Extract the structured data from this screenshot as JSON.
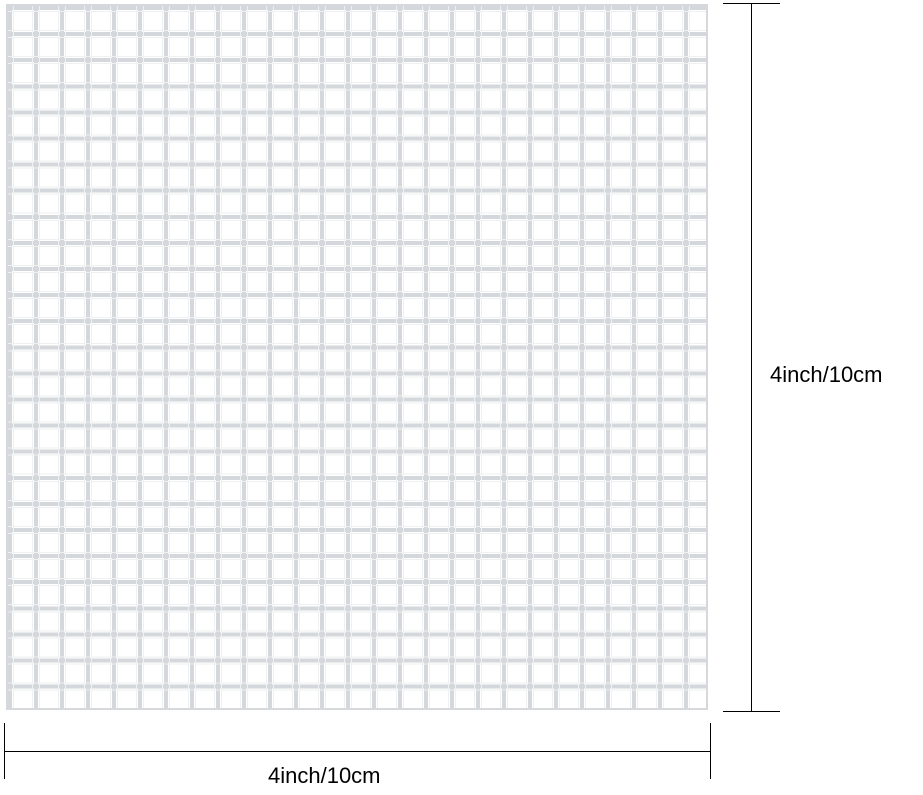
{
  "product": "plastic-canvas-grid-sheet",
  "dimensions": {
    "height_label": "4inch/10cm",
    "width_label": "4inch/10cm"
  },
  "colors": {
    "grid": "#d4d7db",
    "dimension_line": "#000000"
  }
}
